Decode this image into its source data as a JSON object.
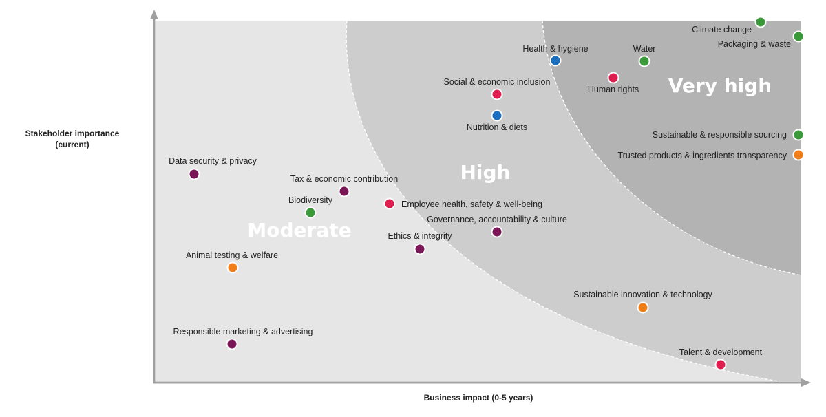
{
  "chart_data": {
    "type": "scatter",
    "title": "",
    "xlabel": "Business impact (0-5 years)",
    "ylabel_line1": "Stakeholder importance",
    "ylabel_line2": "(current)",
    "zones": [
      "Moderate",
      "High",
      "Very high"
    ],
    "category_colors": {
      "green": "#3a9a3a",
      "blue": "#1a6fc0",
      "red": "#de1e4e",
      "purple": "#7a1656",
      "orange": "#f07d18"
    },
    "zone_colors": [
      "#e6e6e6",
      "#cdcdcd",
      "#b3b3b3"
    ],
    "points": [
      {
        "label": "Climate change",
        "color": "green"
      },
      {
        "label": "Packaging & waste",
        "color": "green"
      },
      {
        "label": "Water",
        "color": "green"
      },
      {
        "label": "Health & hygiene",
        "color": "blue"
      },
      {
        "label": "Human rights",
        "color": "red"
      },
      {
        "label": "Social & economic inclusion",
        "color": "red"
      },
      {
        "label": "Nutrition & diets",
        "color": "blue"
      },
      {
        "label": "Sustainable & responsible sourcing",
        "color": "green"
      },
      {
        "label": "Trusted products & ingredients transparency",
        "color": "orange"
      },
      {
        "label": "Data security & privacy",
        "color": "purple"
      },
      {
        "label": "Tax & economic contribution",
        "color": "purple"
      },
      {
        "label": "Biodiversity",
        "color": "green"
      },
      {
        "label": "Employee health, safety & well-being",
        "color": "red"
      },
      {
        "label": "Governance, accountability & culture",
        "color": "purple"
      },
      {
        "label": "Ethics & integrity",
        "color": "purple"
      },
      {
        "label": "Animal testing & welfare",
        "color": "orange"
      },
      {
        "label": "Sustainable innovation & technology",
        "color": "orange"
      },
      {
        "label": "Responsible marketing & advertising",
        "color": "purple"
      },
      {
        "label": "Talent & development",
        "color": "red"
      }
    ]
  }
}
